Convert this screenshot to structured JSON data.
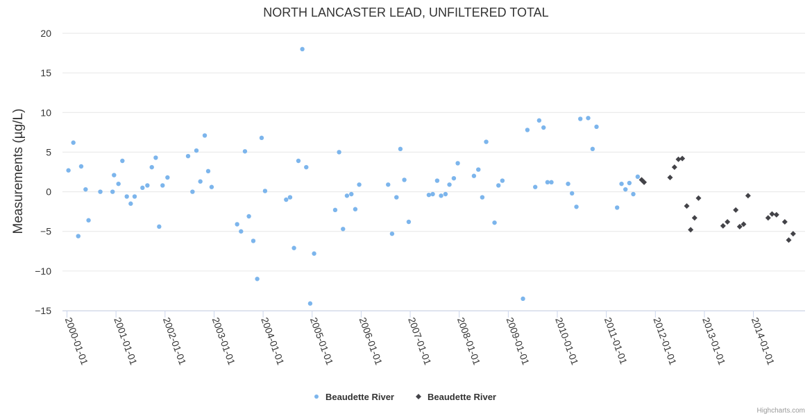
{
  "chart_data": {
    "type": "scatter",
    "title": "NORTH LANCASTER LEAD, UNFILTERED TOTAL",
    "xlabel": "",
    "ylabel": "Measurements (µg/L)",
    "xlim": [
      "2000-01-01",
      "2014-12-31"
    ],
    "ylim": [
      -15,
      20
    ],
    "y_ticks": [
      "−15",
      "−10",
      "−5",
      "0",
      "5",
      "10",
      "15",
      "20"
    ],
    "y_tick_values": [
      -15,
      -10,
      -5,
      0,
      5,
      10,
      15,
      20
    ],
    "x_ticks": [
      "2000-01-01",
      "2001-01-01",
      "2002-01-01",
      "2003-01-01",
      "2004-01-01",
      "2005-01-01",
      "2006-01-01",
      "2007-01-01",
      "2008-01-01",
      "2009-01-01",
      "2010-01-01",
      "2011-01-01",
      "2012-01-01",
      "2013-01-01",
      "2014-01-01"
    ],
    "grid": true,
    "legend_position": "bottom-center",
    "series": [
      {
        "name": "Beaudette River",
        "marker": "circle",
        "color": "#7cb5ec",
        "points": [
          [
            2000.03,
            2.7
          ],
          [
            2000.13,
            6.2
          ],
          [
            2000.23,
            -5.6
          ],
          [
            2000.29,
            3.2
          ],
          [
            2000.38,
            0.3
          ],
          [
            2000.44,
            -3.6
          ],
          [
            2000.68,
            0.0
          ],
          [
            2000.93,
            0.0
          ],
          [
            2000.96,
            2.1
          ],
          [
            2001.05,
            1.0
          ],
          [
            2001.13,
            3.9
          ],
          [
            2001.22,
            -0.6
          ],
          [
            2001.3,
            -1.5
          ],
          [
            2001.38,
            -0.6
          ],
          [
            2001.54,
            0.5
          ],
          [
            2001.64,
            0.8
          ],
          [
            2001.73,
            3.1
          ],
          [
            2001.81,
            4.3
          ],
          [
            2001.88,
            -4.4
          ],
          [
            2001.95,
            0.8
          ],
          [
            2002.05,
            1.8
          ],
          [
            2002.47,
            4.5
          ],
          [
            2002.56,
            0.0
          ],
          [
            2002.64,
            5.2
          ],
          [
            2002.72,
            1.3
          ],
          [
            2002.81,
            7.1
          ],
          [
            2002.88,
            2.6
          ],
          [
            2002.95,
            0.6
          ],
          [
            2003.47,
            -4.1
          ],
          [
            2003.55,
            -5.0
          ],
          [
            2003.63,
            5.1
          ],
          [
            2003.71,
            -3.1
          ],
          [
            2003.8,
            -6.2
          ],
          [
            2003.88,
            -11.0
          ],
          [
            2003.97,
            6.8
          ],
          [
            2004.04,
            0.1
          ],
          [
            2004.47,
            -1.0
          ],
          [
            2004.55,
            -0.7
          ],
          [
            2004.63,
            -7.1
          ],
          [
            2004.72,
            3.9
          ],
          [
            2004.8,
            18.0
          ],
          [
            2004.88,
            3.1
          ],
          [
            2004.96,
            -14.1
          ],
          [
            2005.04,
            -7.8
          ],
          [
            2005.47,
            -2.3
          ],
          [
            2005.55,
            5.0
          ],
          [
            2005.63,
            -4.7
          ],
          [
            2005.71,
            -0.5
          ],
          [
            2005.8,
            -0.3
          ],
          [
            2005.88,
            -2.2
          ],
          [
            2005.96,
            0.9
          ],
          [
            2006.55,
            0.9
          ],
          [
            2006.63,
            -5.3
          ],
          [
            2006.72,
            -0.7
          ],
          [
            2006.8,
            5.4
          ],
          [
            2006.88,
            1.5
          ],
          [
            2006.97,
            -3.8
          ],
          [
            2007.38,
            -0.4
          ],
          [
            2007.46,
            -0.3
          ],
          [
            2007.55,
            1.4
          ],
          [
            2007.63,
            -0.5
          ],
          [
            2007.72,
            -0.3
          ],
          [
            2007.8,
            0.9
          ],
          [
            2007.89,
            1.7
          ],
          [
            2007.97,
            3.6
          ],
          [
            2008.3,
            2.0
          ],
          [
            2008.39,
            2.8
          ],
          [
            2008.47,
            -0.7
          ],
          [
            2008.55,
            6.3
          ],
          [
            2008.72,
            -3.9
          ],
          [
            2008.8,
            0.8
          ],
          [
            2008.88,
            1.4
          ],
          [
            2009.3,
            -13.5
          ],
          [
            2009.39,
            7.8
          ],
          [
            2009.55,
            0.6
          ],
          [
            2009.63,
            9.0
          ],
          [
            2009.72,
            8.1
          ],
          [
            2009.8,
            1.2
          ],
          [
            2009.88,
            1.2
          ],
          [
            2010.22,
            1.0
          ],
          [
            2010.3,
            -0.2
          ],
          [
            2010.39,
            -1.9
          ],
          [
            2010.47,
            9.2
          ],
          [
            2010.63,
            9.3
          ],
          [
            2010.72,
            5.4
          ],
          [
            2010.8,
            8.2
          ],
          [
            2011.22,
            -2.0
          ],
          [
            2011.31,
            1.0
          ],
          [
            2011.39,
            0.3
          ],
          [
            2011.47,
            1.1
          ],
          [
            2011.55,
            -0.3
          ],
          [
            2011.64,
            1.9
          ]
        ]
      },
      {
        "name": "Beaudette River",
        "marker": "diamond",
        "color": "#434348",
        "points": [
          [
            2011.72,
            1.5
          ],
          [
            2011.77,
            1.2
          ],
          [
            2012.3,
            1.8
          ],
          [
            2012.39,
            3.1
          ],
          [
            2012.47,
            4.1
          ],
          [
            2012.55,
            4.2
          ],
          [
            2012.64,
            -1.8
          ],
          [
            2012.72,
            -4.8
          ],
          [
            2012.8,
            -3.3
          ],
          [
            2012.88,
            -0.8
          ],
          [
            2013.38,
            -4.3
          ],
          [
            2013.47,
            -3.8
          ],
          [
            2013.64,
            -2.3
          ],
          [
            2013.72,
            -4.4
          ],
          [
            2013.8,
            -4.1
          ],
          [
            2013.89,
            -0.5
          ],
          [
            2014.3,
            -3.3
          ],
          [
            2014.38,
            -2.8
          ],
          [
            2014.47,
            -2.9
          ],
          [
            2014.64,
            -3.8
          ],
          [
            2014.72,
            -6.1
          ],
          [
            2014.81,
            -5.3
          ]
        ]
      }
    ]
  },
  "credits": "Highcharts.com"
}
